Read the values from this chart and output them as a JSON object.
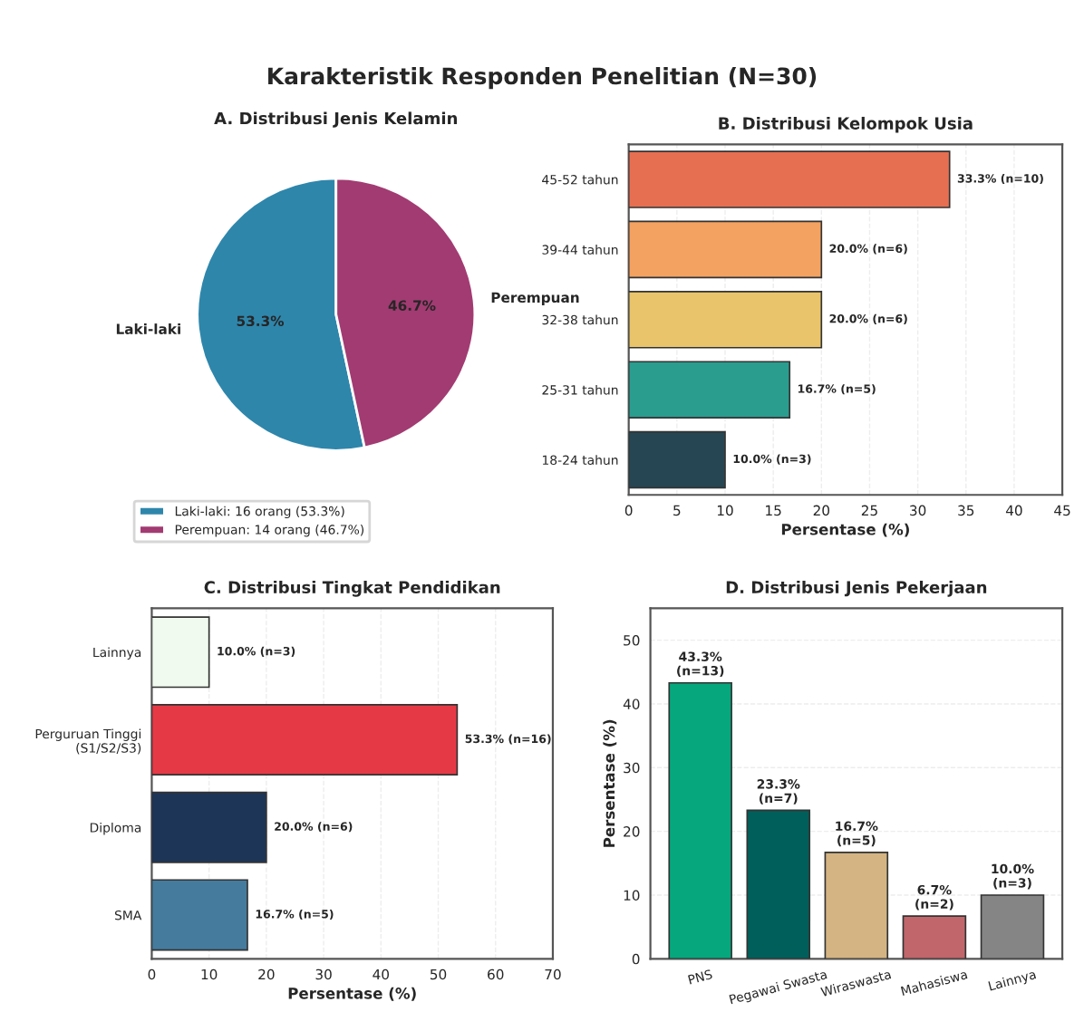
{
  "chart_data": [
    {
      "type": "other",
      "title": "Karakteristik Responden Penelitian (N=30)"
    },
    {
      "type": "pie",
      "title": "A. Distribusi Jenis Kelamin",
      "categories": [
        "Laki-laki",
        "Perempuan"
      ],
      "values": [
        53.3,
        46.7
      ],
      "colors": [
        "#2e86ab",
        "#a23b72"
      ],
      "value_labels": [
        "53.3%",
        "46.7%"
      ],
      "annotations": [
        "Laki-laki: 16 orang (53.3%)",
        "Perempuan: 14 orang (46.7%)"
      ]
    },
    {
      "type": "bar",
      "orientation": "horizontal",
      "title": "B. Distribusi Kelompok Usia",
      "xlabel": "Persentase (%)",
      "categories": [
        "45-52 tahun",
        "39-44 tahun",
        "32-38 tahun",
        "25-31 tahun",
        "18-24 tahun"
      ],
      "values": [
        33.3,
        20.0,
        20.0,
        16.7,
        10.0
      ],
      "colors": [
        "#e76f51",
        "#f4a261",
        "#e9c46a",
        "#2a9d8f",
        "#264653"
      ],
      "value_labels": [
        "33.3% (n=10)",
        "20.0% (n=6)",
        "20.0% (n=6)",
        "16.7% (n=5)",
        "10.0% (n=3)"
      ],
      "xlim": [
        0,
        45
      ],
      "xticks": [
        0,
        5,
        10,
        15,
        20,
        25,
        30,
        35,
        40,
        45
      ],
      "grid": "x"
    },
    {
      "type": "bar",
      "orientation": "horizontal",
      "title": "C. Distribusi Tingkat Pendidikan",
      "xlabel": "Persentase (%)",
      "categories": [
        "Lainnya",
        "Perguruan Tinggi\n(S1/S2/S3)",
        "Diploma",
        "SMA"
      ],
      "values": [
        10.0,
        53.3,
        20.0,
        16.7
      ],
      "colors": [
        "#f1faee",
        "#e63946",
        "#1d3557",
        "#457b9d"
      ],
      "value_labels": [
        "10.0% (n=3)",
        "53.3% (n=16)",
        "20.0% (n=6)",
        "16.7% (n=5)"
      ],
      "xlim": [
        0,
        70
      ],
      "xticks": [
        0,
        10,
        20,
        30,
        40,
        50,
        60,
        70
      ],
      "grid": "x"
    },
    {
      "type": "bar",
      "title": "D. Distribusi Jenis Pekerjaan",
      "ylabel": "Persentase (%)",
      "categories": [
        "PNS",
        "Pegawai Swasta",
        "Wiraswasta",
        "Mahasiswa",
        "Lainnya"
      ],
      "values": [
        43.3,
        23.3,
        16.7,
        6.7,
        10.0
      ],
      "colors": [
        "#06a77d",
        "#005f5a",
        "#d4b483",
        "#c1666b",
        "#858585"
      ],
      "value_labels": [
        "43.3%\n(n=13)",
        "23.3%\n(n=7)",
        "16.7%\n(n=5)",
        "6.7%\n(n=2)",
        "10.0%\n(n=3)"
      ],
      "ylim": [
        0,
        55
      ],
      "yticks": [
        0,
        10,
        20,
        30,
        40,
        50
      ],
      "grid": "y"
    }
  ]
}
